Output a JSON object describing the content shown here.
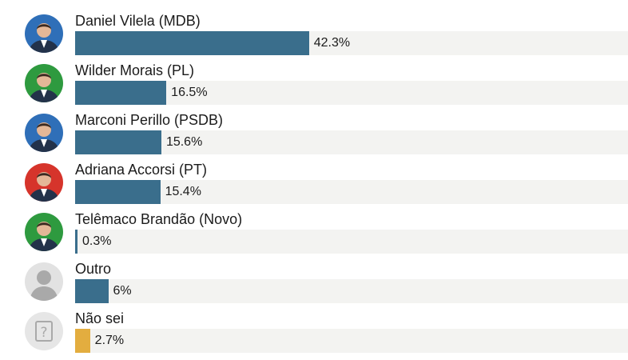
{
  "chart_data": {
    "type": "bar",
    "orientation": "horizontal",
    "categories": [
      "Daniel Vilela (MDB)",
      "Wilder Morais (PL)",
      "Marconi Perillo (PSDB)",
      "Adriana Accorsi (PT)",
      "Telêmaco Brandão (Novo)",
      "Outro",
      "Não sei"
    ],
    "values": [
      42.3,
      16.5,
      15.6,
      15.4,
      0.3,
      6,
      2.7
    ],
    "value_labels": [
      "42.3%",
      "16.5%",
      "15.6%",
      "15.4%",
      "0.3%",
      "6%",
      "2.7%"
    ],
    "xlim": [
      0,
      100
    ],
    "grid": false,
    "colors": {
      "bar": "#3a6e8c",
      "bar_highlight": "#e3ad3f",
      "track": "#f3f3f1"
    },
    "bar_colors": [
      "#3a6e8c",
      "#3a6e8c",
      "#3a6e8c",
      "#3a6e8c",
      "#3a6e8c",
      "#3a6e8c",
      "#e3ad3f"
    ],
    "avatars": [
      {
        "icon": "candidate-photo-icon",
        "bg": "#2f6fb8"
      },
      {
        "icon": "candidate-photo-icon",
        "bg": "#2e9a3f"
      },
      {
        "icon": "candidate-photo-icon",
        "bg": "#2f6fb8"
      },
      {
        "icon": "candidate-photo-icon",
        "bg": "#d6342b"
      },
      {
        "icon": "candidate-photo-icon",
        "bg": "#2e9a3f"
      },
      {
        "icon": "generic-person-icon",
        "bg": "#e2e2e2"
      },
      {
        "icon": "question-mark-icon",
        "bg": "#e6e6e6"
      }
    ]
  }
}
